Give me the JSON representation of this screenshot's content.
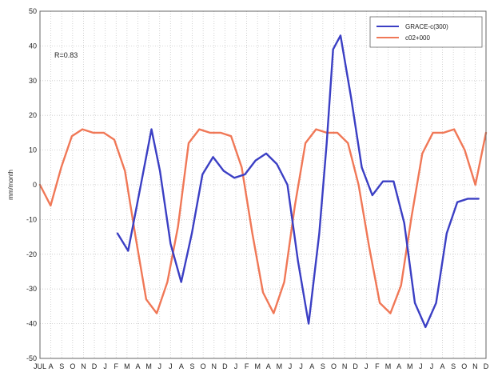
{
  "chart_data": {
    "type": "line",
    "ylabel": "mm/month",
    "ylim": [
      -50,
      50
    ],
    "yticks": [
      50,
      40,
      30,
      20,
      10,
      0,
      -10,
      -20,
      -30,
      -40,
      -50
    ],
    "xticks": [
      "JUL",
      "A",
      "S",
      "O",
      "N",
      "D",
      "J",
      "F",
      "M",
      "A",
      "M",
      "J",
      "J",
      "A",
      "S",
      "O",
      "N",
      "D",
      "J",
      "F",
      "M",
      "A",
      "M",
      "J",
      "J",
      "A",
      "S",
      "O",
      "N",
      "D",
      "J",
      "F",
      "M",
      "A",
      "M",
      "J",
      "J",
      "A",
      "S",
      "O",
      "N",
      "D"
    ],
    "xlim": [
      0,
      42
    ],
    "grid": true,
    "legend_position": "top-right",
    "annotation": "R=0.83",
    "series": [
      {
        "name": "GRACE-c(300)",
        "color": "#3b3fc4",
        "x": [
          7.3,
          8.3,
          9.5,
          10.5,
          11.3,
          12.3,
          13.3,
          14.3,
          15.3,
          16.3,
          17.3,
          18.3,
          19.3,
          20.3,
          21.3,
          22.3,
          23.3,
          24.3,
          25.3,
          26.3,
          27.0,
          27.6,
          28.3,
          29.3,
          30.3,
          31.3,
          32.3,
          33.3,
          34.3,
          35.3,
          36.3,
          37.3,
          38.3,
          39.3,
          40.3,
          41.3
        ],
        "y": [
          -14,
          -19,
          0,
          16,
          4,
          -17,
          -28,
          -14,
          3,
          8,
          4,
          2,
          3,
          7,
          9,
          6,
          0,
          -22,
          -40,
          -14,
          12,
          39,
          43,
          25,
          5,
          -3,
          1,
          1,
          -11,
          -34,
          -41,
          -34,
          -14,
          -5,
          -4,
          -4
        ]
      },
      {
        "name": "c02+000",
        "color": "#f07857",
        "x": [
          0,
          1,
          2,
          3,
          4,
          5,
          6,
          7,
          8,
          9,
          10,
          11,
          12,
          13,
          14,
          15,
          16,
          17,
          18,
          19,
          20,
          21,
          22,
          23,
          24,
          25,
          26,
          27,
          28,
          29,
          30,
          31,
          32,
          33,
          34,
          35,
          36,
          37,
          38,
          39,
          40,
          41,
          42
        ],
        "y": [
          0,
          -6,
          5,
          14,
          16,
          15,
          15,
          13,
          4,
          -15,
          -33,
          -37,
          -28,
          -12,
          12,
          16,
          15,
          15,
          14,
          5,
          -14,
          -31,
          -37,
          -28,
          -6,
          12,
          16,
          15,
          15,
          12,
          0,
          -18,
          -34,
          -37,
          -29,
          -9,
          9,
          15,
          15,
          16,
          10,
          0,
          15
        ]
      }
    ]
  }
}
